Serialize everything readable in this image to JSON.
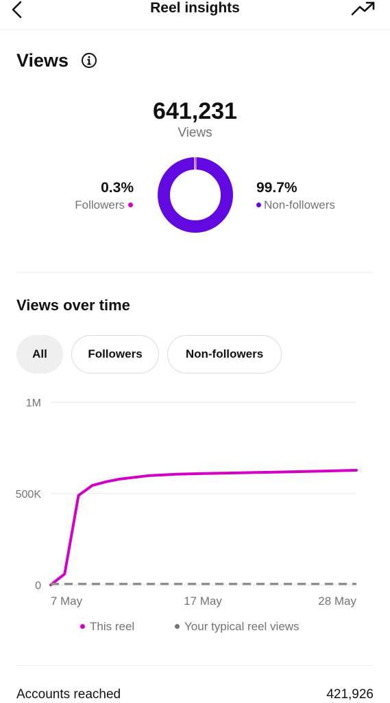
{
  "header": {
    "title": "Reel insights"
  },
  "views": {
    "section_title": "Views",
    "total": "641,231",
    "total_label": "Views",
    "followers_pct": "0.3%",
    "followers_label": "Followers",
    "non_followers_pct": "99.7%",
    "non_followers_label": "Non-followers",
    "followers_fraction": 0.003,
    "colors": {
      "followers": "#d300c5",
      "non_followers": "#6109e0"
    }
  },
  "views_over_time": {
    "section_title": "Views over time",
    "filters": [
      "All",
      "Followers",
      "Non-followers"
    ],
    "selected_filter": "All"
  },
  "chart_data": {
    "type": "line",
    "x_tick_labels": [
      "7 May",
      "17 May",
      "28 May"
    ],
    "y_tick_labels": [
      "1M",
      "500K",
      "0"
    ],
    "ylim": [
      0,
      1000000
    ],
    "xlim": [
      0,
      22
    ],
    "grid": true,
    "legend_position": "bottom",
    "series": [
      {
        "name": "This reel",
        "color": "#d300c5",
        "style": "solid",
        "x": [
          0,
          1,
          2,
          3,
          4,
          5,
          7,
          9,
          11,
          13,
          15,
          17,
          20,
          22
        ],
        "values": [
          0,
          60000,
          490000,
          545000,
          565000,
          580000,
          598000,
          606000,
          610000,
          613000,
          616000,
          619000,
          624000,
          628000
        ]
      },
      {
        "name": "Your typical reel views",
        "color": "#8e8e8e",
        "style": "dashed",
        "x": [
          0,
          22
        ],
        "values": [
          5000,
          5000
        ]
      }
    ]
  },
  "accounts_reached": {
    "label": "Accounts reached",
    "value": "421,926"
  }
}
